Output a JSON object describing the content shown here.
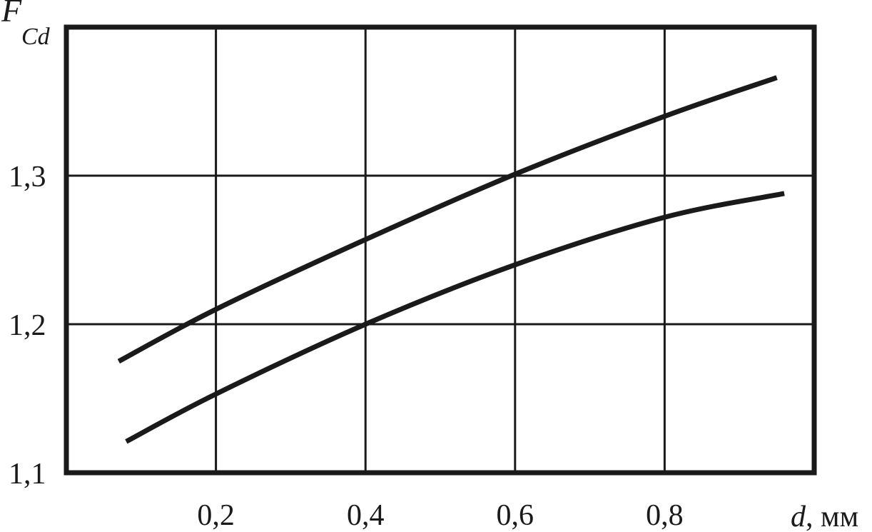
{
  "chart_data": {
    "type": "line",
    "title": "",
    "xlabel": {
      "symbol": "d",
      "unit": ", мм"
    },
    "ylabel": {
      "symbol": "F",
      "subscript": "Cd"
    },
    "xlim": [
      0.0,
      1.0
    ],
    "ylim": [
      1.1,
      1.4
    ],
    "x_ticks": [
      {
        "value": 0.2,
        "label": "0,2"
      },
      {
        "value": 0.4,
        "label": "0,4"
      },
      {
        "value": 0.6,
        "label": "0,6"
      },
      {
        "value": 0.8,
        "label": "0,8"
      }
    ],
    "y_ticks": [
      {
        "value": 1.1,
        "label": "1,1"
      },
      {
        "value": 1.2,
        "label": "1,2"
      },
      {
        "value": 1.3,
        "label": "1,3"
      }
    ],
    "grid": true,
    "series": [
      {
        "color": "#1a1a1a",
        "x": [
          0.07,
          0.2,
          0.4,
          0.6,
          0.8,
          0.95
        ],
        "y": [
          1.175,
          1.21,
          1.257,
          1.301,
          1.34,
          1.366
        ]
      },
      {
        "color": "#1a1a1a",
        "x": [
          0.08,
          0.2,
          0.4,
          0.6,
          0.8,
          0.96
        ],
        "y": [
          1.121,
          1.153,
          1.2,
          1.24,
          1.272,
          1.288
        ]
      }
    ]
  }
}
